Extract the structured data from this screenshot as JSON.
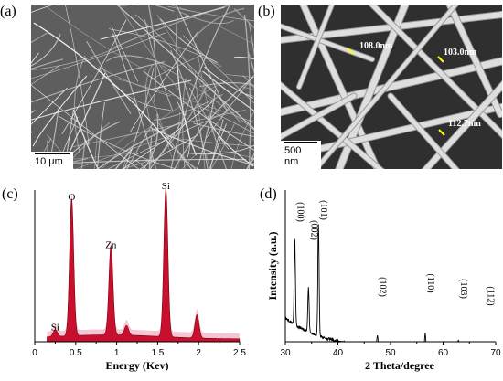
{
  "panels": {
    "a": {
      "label": "(a)",
      "scale_bar": "10 μm"
    },
    "b": {
      "label": "(b)",
      "scale_bar": "500 nm",
      "measurements": [
        "108.0nm",
        "103.0nm",
        "112.7nm"
      ]
    },
    "c": {
      "label": "(c)"
    },
    "d": {
      "label": "(d)"
    }
  },
  "colors": {
    "eds_fill": "#c8102e",
    "eds_halo": "#f4b6c8",
    "xrd_line": "#000000",
    "marker": "#ffff00"
  },
  "chart_data": [
    {
      "type": "area",
      "panel": "c",
      "xlabel": "Energy (Kev)",
      "ylabel": "",
      "xlim": [
        0,
        2.5
      ],
      "xticks": [
        "0",
        "0.5",
        "1",
        "1.5",
        "2",
        "2.5"
      ],
      "peaks": [
        {
          "label": "Si",
          "x": 0.25,
          "height": 0.05
        },
        {
          "label": "O",
          "x": 0.45,
          "height": 1.0
        },
        {
          "label": "Zn",
          "x": 0.93,
          "height": 0.65
        },
        {
          "label": "Si",
          "x": 1.6,
          "height": 1.08
        }
      ],
      "minor_peaks": [
        {
          "x": 1.12,
          "height": 0.07
        },
        {
          "x": 1.98,
          "height": 0.17
        }
      ]
    },
    {
      "type": "line",
      "panel": "d",
      "xlabel": "2 Theta/degree",
      "ylabel": "Intensity (a.u.)",
      "xlim": [
        30,
        70
      ],
      "xticks": [
        "30",
        "40",
        "50",
        "60",
        "70"
      ],
      "peaks": [
        {
          "label": "(100)",
          "x": 31.8,
          "height": 0.55
        },
        {
          "label": "(002)",
          "x": 34.4,
          "height": 0.28
        },
        {
          "label": "(101)",
          "x": 36.3,
          "height": 0.72
        },
        {
          "label": "(102)",
          "x": 47.5,
          "height": 0.07
        },
        {
          "label": "(110)",
          "x": 56.6,
          "height": 0.11
        },
        {
          "label": "(103)",
          "x": 62.9,
          "height": 0.07
        },
        {
          "label": "(112)",
          "x": 68.0,
          "height": 0.04
        }
      ]
    }
  ]
}
